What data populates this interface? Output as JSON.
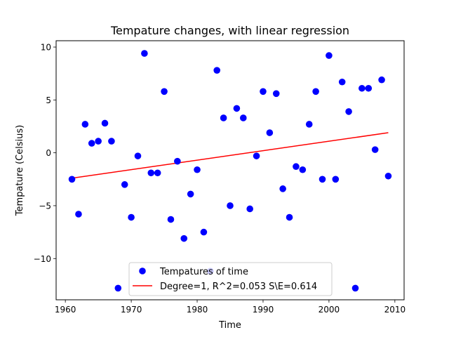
{
  "chart_data": {
    "type": "scatter",
    "title": "Tempature changes, with linear regression",
    "xlabel": "Time",
    "ylabel": "Tempature (Celsius)",
    "xlim": [
      1958.6,
      2011.4
    ],
    "ylim": [
      -13.9,
      10.6
    ],
    "xticks": [
      1960,
      1970,
      1980,
      1990,
      2000,
      2010
    ],
    "yticks": [
      -10,
      -5,
      0,
      5,
      10
    ],
    "xtick_labels": [
      "1960",
      "1970",
      "1980",
      "1990",
      "2000",
      "2010"
    ],
    "ytick_labels": [
      "−10",
      "−5",
      "0",
      "5",
      "10"
    ],
    "grid": false,
    "legend_position": "bottom-center",
    "series": [
      {
        "name": "Tempatures of time",
        "kind": "scatter",
        "color": "#0000ff",
        "x": [
          1961,
          1962,
          1963,
          1964,
          1965,
          1966,
          1967,
          1968,
          1969,
          1970,
          1971,
          1972,
          1973,
          1974,
          1975,
          1976,
          1977,
          1978,
          1979,
          1980,
          1981,
          1982,
          1983,
          1984,
          1985,
          1986,
          1987,
          1988,
          1989,
          1990,
          1991,
          1992,
          1993,
          1994,
          1995,
          1996,
          1997,
          1998,
          1999,
          2000,
          2001,
          2002,
          2003,
          2004,
          2005,
          2006,
          2007,
          2008,
          2009
        ],
        "y": [
          -2.5,
          -5.8,
          2.7,
          0.9,
          1.1,
          2.8,
          1.1,
          -12.8,
          -3.0,
          -6.1,
          -0.3,
          9.4,
          -1.9,
          -1.9,
          5.8,
          -6.3,
          -0.8,
          -8.1,
          -3.9,
          -1.6,
          -7.5,
          -11.2,
          7.8,
          3.3,
          -5.0,
          4.2,
          3.3,
          -5.3,
          -0.3,
          5.8,
          1.9,
          5.6,
          -3.4,
          -6.1,
          -1.3,
          -1.6,
          2.7,
          5.8,
          -2.5,
          9.2,
          -2.5,
          6.7,
          3.9,
          -12.8,
          6.1,
          6.1,
          0.3,
          6.9,
          -2.2
        ]
      },
      {
        "name": "Degree=1, R^2=0.053 S\\E=0.614",
        "kind": "line",
        "color": "#ff0000",
        "x": [
          1961,
          2009
        ],
        "y": [
          -2.4,
          1.9
        ]
      }
    ]
  }
}
